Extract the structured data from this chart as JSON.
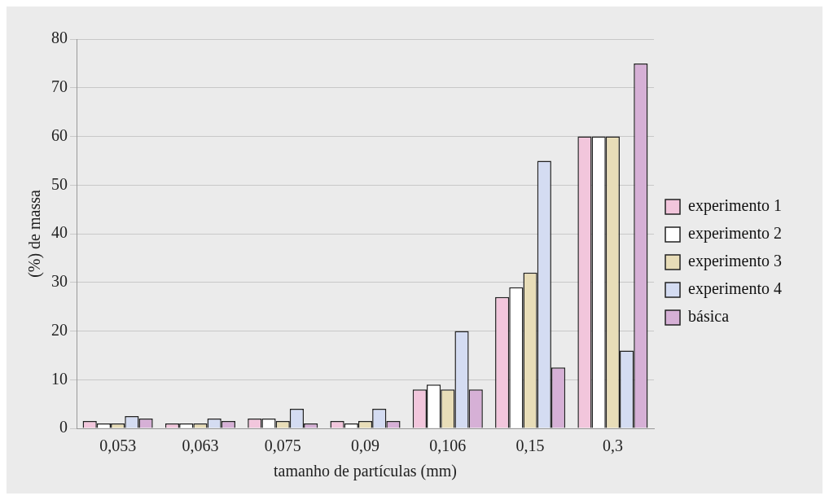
{
  "chart_data": {
    "type": "bar",
    "xlabel": "tamanho de partículas (mm)",
    "ylabel": "(%) de massa",
    "categories": [
      "0,053",
      "0,063",
      "0,075",
      "0,09",
      "0,106",
      "0,15",
      "0,3"
    ],
    "series": [
      {
        "name": "experimento 1",
        "color": "#f2c6dc",
        "values": [
          1.5,
          1,
          2,
          1.5,
          8,
          27,
          60
        ]
      },
      {
        "name": "experimento 2",
        "color": "#ffffff",
        "values": [
          1,
          1,
          2,
          1,
          9,
          29,
          60
        ]
      },
      {
        "name": "experimento 3",
        "color": "#e8ddb8",
        "values": [
          1,
          1,
          1.5,
          1.5,
          8,
          32,
          60
        ]
      },
      {
        "name": "experimento 4",
        "color": "#d4dcf2",
        "values": [
          2.5,
          2,
          4,
          4,
          20,
          55,
          16
        ]
      },
      {
        "name": "básica",
        "color": "#d6b0d6",
        "values": [
          2,
          1.5,
          1,
          1.5,
          8,
          12.5,
          75
        ]
      }
    ],
    "ylim": [
      0,
      80
    ],
    "yticks": [
      0,
      10,
      20,
      30,
      40,
      50,
      60,
      70,
      80
    ],
    "grid": "y",
    "legend": "right"
  }
}
